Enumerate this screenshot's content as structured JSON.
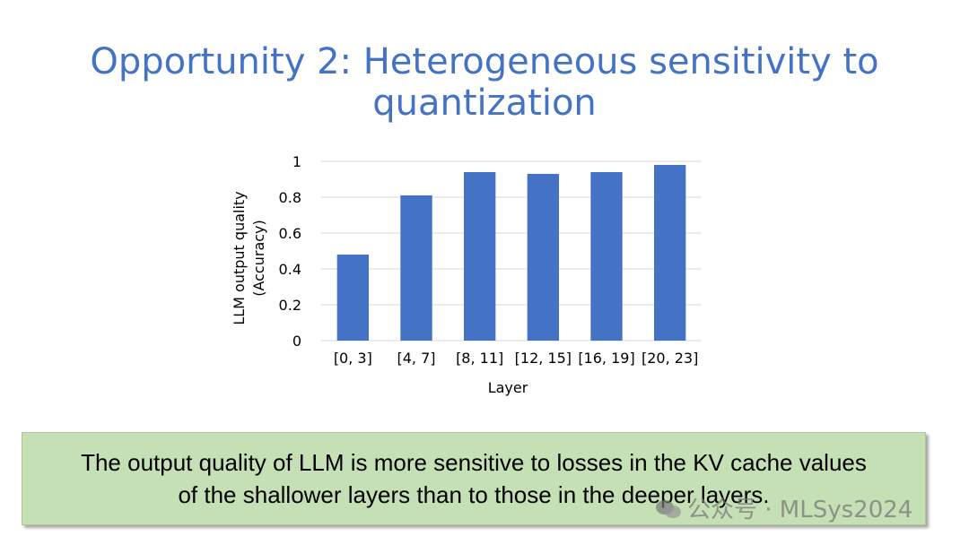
{
  "slide": {
    "title": "Opportunity 2: Heterogeneous sensitivity to quantization",
    "callout_line1": "The output quality of LLM is more sensitive to losses in the KV cache values",
    "callout_line2": "of the shallower layers than to those in the deeper layers.",
    "watermark": "公众号 · MLSys2024"
  },
  "colors": {
    "title": "#4472C4",
    "bar": "#4472C4",
    "callout_bg": "#C5E0B4",
    "grid": "#D9D9D9"
  },
  "chart_data": {
    "type": "bar",
    "title": "",
    "xlabel": "Layer",
    "ylabel_line1": "LLM output quality",
    "ylabel_line2": "(Accuracy)",
    "categories": [
      "[0, 3]",
      "[4, 7]",
      "[8, 11]",
      "[12, 15]",
      "[16, 19]",
      "[20, 23]"
    ],
    "values": [
      0.48,
      0.81,
      0.94,
      0.93,
      0.94,
      0.98
    ],
    "ylim": [
      0,
      1
    ],
    "yticks": [
      0,
      0.2,
      0.4,
      0.6,
      0.8,
      1
    ],
    "ytick_labels": [
      "0",
      "0.2",
      "0.4",
      "0.6",
      "0.8",
      "1"
    ],
    "grid": true,
    "legend": "none"
  }
}
